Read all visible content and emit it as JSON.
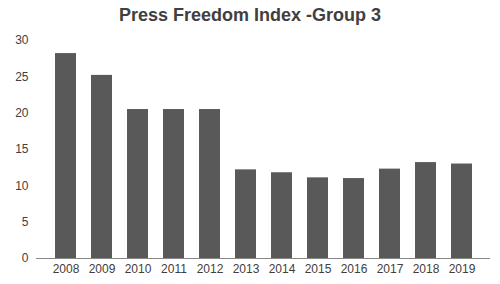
{
  "chart_data": {
    "type": "bar",
    "title": "Press Freedom Index -Group 3",
    "categories": [
      "2008",
      "2009",
      "2010",
      "2011",
      "2012",
      "2013",
      "2014",
      "2015",
      "2016",
      "2017",
      "2018",
      "2019"
    ],
    "values": [
      28.2,
      25.2,
      20.5,
      20.5,
      20.5,
      12.2,
      11.8,
      11.1,
      11.0,
      12.3,
      13.2,
      13.0
    ],
    "color": "#595959",
    "ylim": [
      0,
      30
    ],
    "yticks": [
      0,
      5,
      10,
      15,
      20,
      25,
      30
    ],
    "grid": false
  }
}
